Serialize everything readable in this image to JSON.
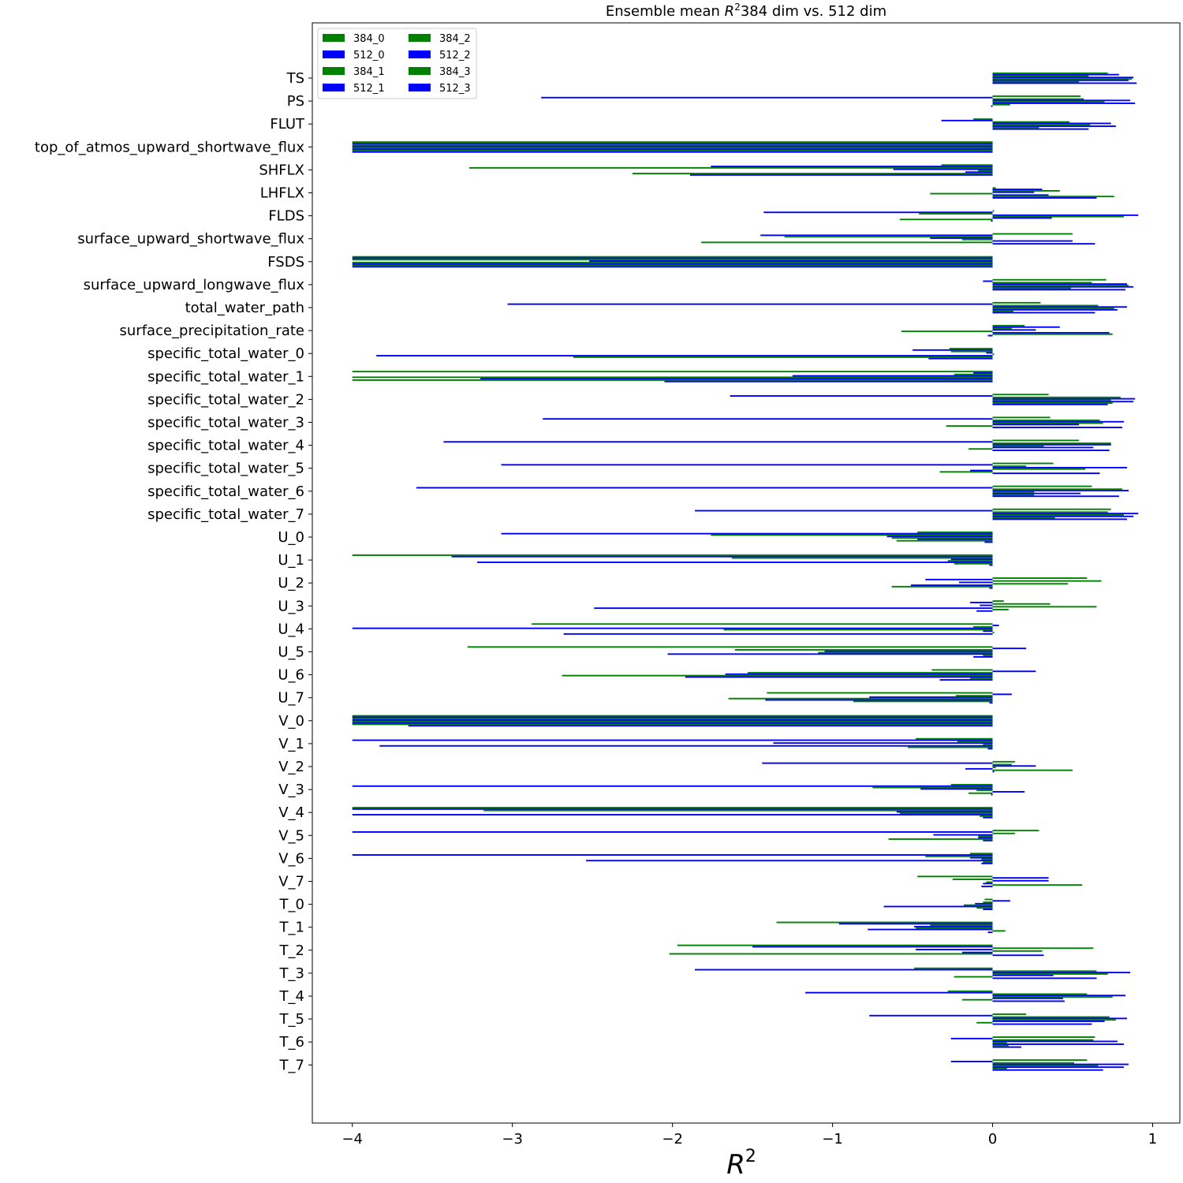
{
  "chart_data": {
    "type": "bar",
    "orientation": "horizontal",
    "title": "Ensemble mean",
    "title_symbol": "R",
    "title_exponent": "2",
    "title_suffix": "384 dim vs. 512 dim",
    "xlabel_symbol": "R",
    "xlabel_exponent": "2",
    "xlim": [
      -4.25,
      1.17
    ],
    "xticks": [
      -4,
      -3,
      -2,
      -1,
      0,
      1
    ],
    "xtick_labels": [
      "−4",
      "−3",
      "−2",
      "−1",
      "0",
      "1"
    ],
    "legend_position": "top-left",
    "colors": {
      "g": "#008000",
      "b": "#0000ff"
    },
    "categories": [
      "TS",
      "PS",
      "FLUT",
      "top_of_atmos_upward_shortwave_flux",
      "SHFLX",
      "LHFLX",
      "FLDS",
      "surface_upward_shortwave_flux",
      "FSDS",
      "surface_upward_longwave_flux",
      "total_water_path",
      "surface_precipitation_rate",
      "specific_total_water_0",
      "specific_total_water_1",
      "specific_total_water_2",
      "specific_total_water_3",
      "specific_total_water_4",
      "specific_total_water_5",
      "specific_total_water_6",
      "specific_total_water_7",
      "U_0",
      "U_1",
      "U_2",
      "U_3",
      "U_4",
      "U_5",
      "U_6",
      "U_7",
      "V_0",
      "V_1",
      "V_2",
      "V_3",
      "V_4",
      "V_5",
      "V_6",
      "V_7",
      "T_0",
      "T_1",
      "T_2",
      "T_3",
      "T_4",
      "T_5",
      "T_6",
      "T_7"
    ],
    "series": [
      {
        "name": "384_0",
        "color": "g",
        "values": [
          0.72,
          0.55,
          -0.12,
          -4.0,
          -0.32,
          0.02,
          0.01,
          0.5,
          -4.0,
          0.71,
          0.3,
          0.2,
          -0.27,
          -4.0,
          0.35,
          0.36,
          0.54,
          0.38,
          0.62,
          0.74,
          -0.47,
          -4.0,
          0.59,
          0.07,
          -2.88,
          -3.28,
          -0.38,
          -1.41,
          -4.0,
          -0.48,
          0.14,
          -0.26,
          -4.0,
          0.29,
          -0.14,
          -0.47,
          -0.05,
          -1.35,
          -1.97,
          -0.49,
          -0.28,
          0.21,
          0.64,
          0.59
        ]
      },
      {
        "name": "512_0",
        "color": "b",
        "values": [
          0.79,
          -2.82,
          -0.32,
          -4.0,
          -1.76,
          0.31,
          -1.43,
          -1.45,
          -4.0,
          -0.06,
          -3.03,
          0.42,
          -0.5,
          -0.12,
          -1.64,
          -2.81,
          -3.43,
          -3.07,
          -3.6,
          -1.86,
          -3.07,
          -3.38,
          -0.42,
          -0.14,
          0.04,
          0.21,
          0.27,
          0.12,
          -4.0,
          -4.0,
          -1.44,
          -4.0,
          -4.0,
          -4.0,
          -4.0,
          0.35,
          0.11,
          -0.96,
          -1.5,
          -1.86,
          -1.17,
          -0.77,
          -0.26,
          -0.26
        ]
      },
      {
        "name": "384_1",
        "color": "g",
        "values": [
          0.6,
          0.57,
          0.48,
          -4.0,
          -3.27,
          0.42,
          -0.46,
          -1.3,
          -4.0,
          0.62,
          0.66,
          0.12,
          -0.26,
          -0.24,
          0.8,
          0.67,
          0.74,
          0.21,
          0.81,
          0.72,
          -1.76,
          -1.63,
          0.68,
          0.36,
          -0.12,
          -1.61,
          -1.53,
          -0.23,
          -4.0,
          -0.22,
          0.12,
          -0.75,
          -3.18,
          0.14,
          -0.42,
          -0.25,
          -0.06,
          -0.39,
          0.63,
          0.65,
          0.59,
          0.73,
          0.63,
          0.51
        ]
      },
      {
        "name": "512_1",
        "color": "b",
        "values": [
          0.88,
          0.86,
          0.74,
          -4.0,
          -0.62,
          0.26,
          0.91,
          -0.39,
          -2.52,
          0.84,
          0.84,
          0.27,
          -0.04,
          -1.25,
          0.89,
          0.82,
          0.74,
          0.84,
          0.85,
          0.91,
          -0.66,
          -0.26,
          -0.21,
          -0.08,
          -4.0,
          -1.05,
          -1.67,
          -0.77,
          -4.0,
          -1.37,
          0.27,
          -0.45,
          -0.6,
          -0.37,
          -0.14,
          0.35,
          -0.11,
          -0.49,
          -0.48,
          0.86,
          0.83,
          0.84,
          0.78,
          0.85
        ]
      },
      {
        "name": "384_2",
        "color": "g",
        "values": [
          0.87,
          0.7,
          0.61,
          -4.0,
          -0.09,
          -0.39,
          0.82,
          -0.19,
          -4.0,
          0.85,
          0.76,
          -0.57,
          0.01,
          -4.0,
          0.74,
          0.69,
          0.32,
          0.58,
          0.26,
          0.82,
          -0.63,
          -0.28,
          0.47,
          0.65,
          -1.68,
          -1.09,
          -2.69,
          -1.65,
          -4.0,
          -0.06,
          0.02,
          -0.1,
          -0.58,
          -0.09,
          -0.07,
          -0.04,
          -0.18,
          -0.48,
          0.31,
          0.72,
          0.75,
          0.77,
          0.09,
          0.66
        ]
      },
      {
        "name": "512_2",
        "color": "b",
        "values": [
          0.85,
          0.89,
          0.77,
          -4.0,
          -0.17,
          0.35,
          0.37,
          0.5,
          -4.0,
          0.88,
          0.78,
          0.73,
          -3.85,
          -3.2,
          0.88,
          0.54,
          0.63,
          -0.14,
          0.55,
          0.88,
          -0.47,
          -3.22,
          -0.51,
          -2.49,
          -0.06,
          -2.03,
          -1.92,
          -1.42,
          -4.0,
          -3.83,
          -0.17,
          0.2,
          -4.0,
          -0.09,
          -2.54,
          -0.06,
          -0.68,
          -0.78,
          -0.19,
          0.38,
          0.44,
          0.7,
          0.82,
          0.82
        ]
      },
      {
        "name": "384_3",
        "color": "g",
        "values": [
          0.54,
          0.11,
          0.29,
          -4.0,
          -2.25,
          0.76,
          -0.58,
          -1.82,
          -4.0,
          0.49,
          0.13,
          0.75,
          -2.62,
          -4.0,
          0.75,
          -0.29,
          -0.15,
          -0.33,
          0.26,
          0.39,
          -0.6,
          -0.24,
          -0.63,
          0.1,
          0.01,
          -0.06,
          -0.14,
          -0.87,
          -4.0,
          -0.53,
          0.5,
          -0.15,
          -0.08,
          -0.65,
          -0.06,
          0.56,
          -0.1,
          0.08,
          -2.02,
          -0.24,
          -0.19,
          -0.1,
          0.1,
          0.09
        ]
      },
      {
        "name": "512_3",
        "color": "b",
        "values": [
          0.9,
          -0.01,
          0.6,
          -4.0,
          -1.89,
          0.65,
          -0.01,
          0.64,
          -4.0,
          0.83,
          0.64,
          -0.03,
          -0.4,
          -2.05,
          0.72,
          0.81,
          0.73,
          0.67,
          0.79,
          0.84,
          -0.05,
          -0.02,
          -0.02,
          -0.1,
          -2.68,
          -0.12,
          -0.33,
          -0.02,
          -3.65,
          -0.03,
          0.01,
          -0.01,
          -0.06,
          -0.06,
          -0.07,
          -0.07,
          -0.06,
          -0.03,
          0.32,
          0.65,
          0.45,
          0.62,
          0.18,
          0.69
        ]
      }
    ]
  }
}
